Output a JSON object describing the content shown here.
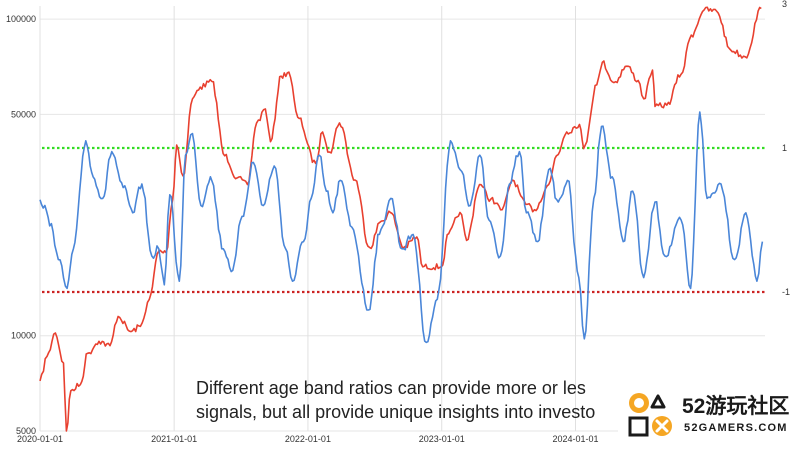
{
  "chart_data": {
    "type": "line",
    "title": "",
    "xlabel": "",
    "ylabel": "",
    "y_scale": "log",
    "ylim": [
      5000,
      110000
    ],
    "left_axis_ticks": [
      "100000",
      "50000",
      "10000",
      "5000"
    ],
    "right_axis_ticks": [
      "3",
      "1",
      "-1"
    ],
    "x_tick_labels": [
      "2020-01-01",
      "2021-01-01",
      "2022-01-01",
      "2023-01-01",
      "2024-01-01"
    ],
    "x_range": [
      "2020-01-01",
      "2025-06-01"
    ],
    "grid": true,
    "threshold_lines": [
      {
        "label": "1",
        "color": "#33dd22",
        "style": "dotted"
      },
      {
        "label": "-1",
        "color": "#cc2222",
        "style": "dotted"
      }
    ],
    "series": [
      {
        "color": "#e8402f",
        "axis": "left",
        "points": [
          [
            "2020-01-01",
            7200
          ],
          [
            "2020-01-20",
            8600
          ],
          [
            "2020-02-12",
            10200
          ],
          [
            "2020-03-05",
            8200
          ],
          [
            "2020-03-13",
            5000
          ],
          [
            "2020-03-25",
            6700
          ],
          [
            "2020-04-20",
            7000
          ],
          [
            "2020-05-10",
            8800
          ],
          [
            "2020-06-10",
            9600
          ],
          [
            "2020-07-10",
            9300
          ],
          [
            "2020-08-01",
            11500
          ],
          [
            "2020-09-05",
            10300
          ],
          [
            "2020-10-01",
            10700
          ],
          [
            "2020-10-25",
            13000
          ],
          [
            "2020-11-20",
            18500
          ],
          [
            "2020-12-10",
            18300
          ],
          [
            "2020-12-28",
            27000
          ],
          [
            "2021-01-08",
            40000
          ],
          [
            "2021-01-25",
            32000
          ],
          [
            "2021-02-20",
            56000
          ],
          [
            "2021-03-13",
            61000
          ],
          [
            "2021-04-14",
            63500
          ],
          [
            "2021-05-19",
            37000
          ],
          [
            "2021-06-22",
            31500
          ],
          [
            "2021-07-20",
            30000
          ],
          [
            "2021-08-14",
            47000
          ],
          [
            "2021-09-07",
            52000
          ],
          [
            "2021-09-21",
            41000
          ],
          [
            "2021-10-20",
            66000
          ],
          [
            "2021-11-10",
            68000
          ],
          [
            "2021-12-04",
            49000
          ],
          [
            "2022-01-22",
            35000
          ],
          [
            "2022-02-10",
            44000
          ],
          [
            "2022-03-01",
            38000
          ],
          [
            "2022-03-28",
            47000
          ],
          [
            "2022-05-10",
            31000
          ],
          [
            "2022-06-18",
            19000
          ],
          [
            "2022-07-20",
            23000
          ],
          [
            "2022-08-14",
            24500
          ],
          [
            "2022-09-20",
            19000
          ],
          [
            "2022-10-25",
            20500
          ],
          [
            "2022-11-10",
            16500
          ],
          [
            "2022-12-31",
            16500
          ],
          [
            "2023-01-20",
            21000
          ],
          [
            "2023-02-20",
            24500
          ],
          [
            "2023-03-10",
            20000
          ],
          [
            "2023-04-14",
            30000
          ],
          [
            "2023-05-15",
            27000
          ],
          [
            "2023-06-15",
            25000
          ],
          [
            "2023-07-13",
            31000
          ],
          [
            "2023-08-18",
            26000
          ],
          [
            "2023-09-11",
            25000
          ],
          [
            "2023-10-20",
            30000
          ],
          [
            "2023-11-10",
            37000
          ],
          [
            "2023-12-08",
            44000
          ],
          [
            "2024-01-12",
            46500
          ],
          [
            "2024-01-23",
            39000
          ],
          [
            "2024-02-28",
            62000
          ],
          [
            "2024-03-14",
            73000
          ],
          [
            "2024-04-15",
            63000
          ],
          [
            "2024-05-20",
            71000
          ],
          [
            "2024-06-20",
            64000
          ],
          [
            "2024-07-05",
            56000
          ],
          [
            "2024-07-29",
            69000
          ],
          [
            "2024-08-05",
            53000
          ],
          [
            "2024-09-06",
            53500
          ],
          [
            "2024-10-15",
            67000
          ],
          [
            "2024-11-12",
            89000
          ],
          [
            "2024-12-17",
            107000
          ],
          [
            "2025-01-20",
            106000
          ],
          [
            "2025-02-27",
            80000
          ],
          [
            "2025-04-08",
            76000
          ],
          [
            "2025-05-22",
            108000
          ]
        ]
      },
      {
        "color": "#4a86d8",
        "axis": "right",
        "points": [
          [
            "2020-01-01",
            0.28
          ],
          [
            "2020-02-01",
            -0.05
          ],
          [
            "2020-02-20",
            -0.55
          ],
          [
            "2020-03-15",
            -0.95
          ],
          [
            "2020-04-01",
            -0.4
          ],
          [
            "2020-05-05",
            1.1
          ],
          [
            "2020-05-25",
            0.6
          ],
          [
            "2020-06-20",
            0.3
          ],
          [
            "2020-07-15",
            0.95
          ],
          [
            "2020-08-15",
            0.45
          ],
          [
            "2020-09-10",
            0.1
          ],
          [
            "2020-10-05",
            0.5
          ],
          [
            "2020-11-01",
            -0.5
          ],
          [
            "2020-11-20",
            -0.4
          ],
          [
            "2020-12-05",
            -0.9
          ],
          [
            "2020-12-20",
            0.35
          ],
          [
            "2021-01-15",
            -0.85
          ],
          [
            "2021-02-01",
            0.9
          ],
          [
            "2021-02-20",
            1.2
          ],
          [
            "2021-03-15",
            0.2
          ],
          [
            "2021-04-10",
            0.6
          ],
          [
            "2021-05-15",
            -0.4
          ],
          [
            "2021-06-10",
            -0.7
          ],
          [
            "2021-07-05",
            0.05
          ],
          [
            "2021-08-05",
            0.8
          ],
          [
            "2021-09-01",
            0.2
          ],
          [
            "2021-10-01",
            0.75
          ],
          [
            "2021-11-01",
            -0.4
          ],
          [
            "2021-11-20",
            -0.85
          ],
          [
            "2021-12-20",
            -0.3
          ],
          [
            "2022-01-10",
            0.3
          ],
          [
            "2022-02-01",
            0.9
          ],
          [
            "2022-02-20",
            0.4
          ],
          [
            "2022-03-10",
            0.1
          ],
          [
            "2022-03-30",
            0.55
          ],
          [
            "2022-05-01",
            -0.1
          ],
          [
            "2022-06-15",
            -1.25
          ],
          [
            "2022-07-15",
            -0.2
          ],
          [
            "2022-08-15",
            0.3
          ],
          [
            "2022-09-15",
            -0.4
          ],
          [
            "2022-10-15",
            -0.2
          ],
          [
            "2022-11-20",
            -1.7
          ],
          [
            "2022-12-20",
            -1.1
          ],
          [
            "2023-01-25",
            1.1
          ],
          [
            "2023-02-20",
            0.7
          ],
          [
            "2023-03-20",
            0.2
          ],
          [
            "2023-04-15",
            0.9
          ],
          [
            "2023-05-10",
            0.0
          ],
          [
            "2023-06-10",
            -0.5
          ],
          [
            "2023-07-05",
            0.5
          ],
          [
            "2023-08-01",
            0.95
          ],
          [
            "2023-08-20",
            0.1
          ],
          [
            "2023-09-20",
            -0.3
          ],
          [
            "2023-10-20",
            0.7
          ],
          [
            "2023-11-15",
            0.25
          ],
          [
            "2023-12-10",
            0.55
          ],
          [
            "2024-01-10",
            -0.8
          ],
          [
            "2024-01-25",
            -1.65
          ],
          [
            "2024-02-20",
            0.3
          ],
          [
            "2024-03-12",
            1.3
          ],
          [
            "2024-04-10",
            0.6
          ],
          [
            "2024-05-10",
            -0.3
          ],
          [
            "2024-06-05",
            0.4
          ],
          [
            "2024-07-05",
            -0.8
          ],
          [
            "2024-08-05",
            0.25
          ],
          [
            "2024-09-01",
            -0.5
          ],
          [
            "2024-10-15",
            0.0
          ],
          [
            "2024-11-10",
            -0.95
          ],
          [
            "2024-12-05",
            1.5
          ],
          [
            "2024-12-25",
            0.3
          ],
          [
            "2025-02-01",
            0.5
          ],
          [
            "2025-03-10",
            -0.55
          ],
          [
            "2025-04-10",
            0.1
          ],
          [
            "2025-05-10",
            -0.85
          ],
          [
            "2025-05-25",
            -0.3
          ]
        ]
      }
    ]
  },
  "caption": {
    "line1": "Different age band ratios can provide more or les",
    "line2": "signals, but all provide unique insights into investo"
  },
  "logo": {
    "brand": "52游玩社区",
    "url": "52GAMERS.COM",
    "icon": "controller-buttons-icon"
  }
}
